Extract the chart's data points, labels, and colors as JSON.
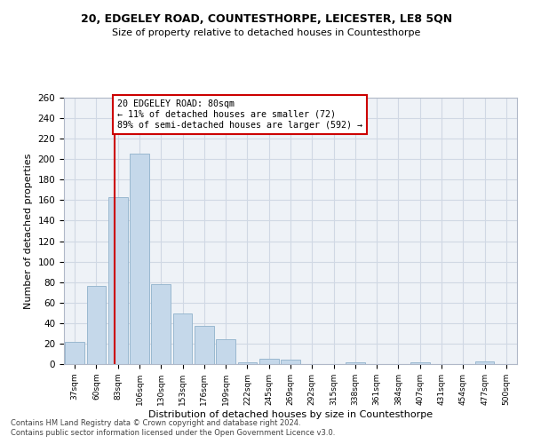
{
  "title": "20, EDGELEY ROAD, COUNTESTHORPE, LEICESTER, LE8 5QN",
  "subtitle": "Size of property relative to detached houses in Countesthorpe",
  "xlabel": "Distribution of detached houses by size in Countesthorpe",
  "ylabel": "Number of detached properties",
  "annotation_title": "20 EDGELEY ROAD: 80sqm",
  "annotation_line1": "← 11% of detached houses are smaller (72)",
  "annotation_line2": "89% of semi-detached houses are larger (592) →",
  "footer1": "Contains HM Land Registry data © Crown copyright and database right 2024.",
  "footer2": "Contains public sector information licensed under the Open Government Licence v3.0.",
  "categories": [
    "37sqm",
    "60sqm",
    "83sqm",
    "106sqm",
    "130sqm",
    "153sqm",
    "176sqm",
    "199sqm",
    "222sqm",
    "245sqm",
    "269sqm",
    "292sqm",
    "315sqm",
    "338sqm",
    "361sqm",
    "384sqm",
    "407sqm",
    "431sqm",
    "454sqm",
    "477sqm",
    "500sqm"
  ],
  "values": [
    22,
    76,
    163,
    205,
    78,
    49,
    37,
    24,
    2,
    5,
    4,
    0,
    0,
    2,
    0,
    0,
    2,
    0,
    0,
    3,
    0
  ],
  "bar_color": "#c5d8ea",
  "bar_edge_color": "#9ab8d0",
  "marker_line_color": "#cc0000",
  "annotation_box_edge_color": "#cc0000",
  "background_color": "#ffffff",
  "plot_bg_color": "#eef2f7",
  "grid_color": "#d0d8e4",
  "ylim": [
    0,
    260
  ],
  "yticks": [
    0,
    20,
    40,
    60,
    80,
    100,
    120,
    140,
    160,
    180,
    200,
    220,
    240,
    260
  ],
  "marker_bar_index": 1.85
}
